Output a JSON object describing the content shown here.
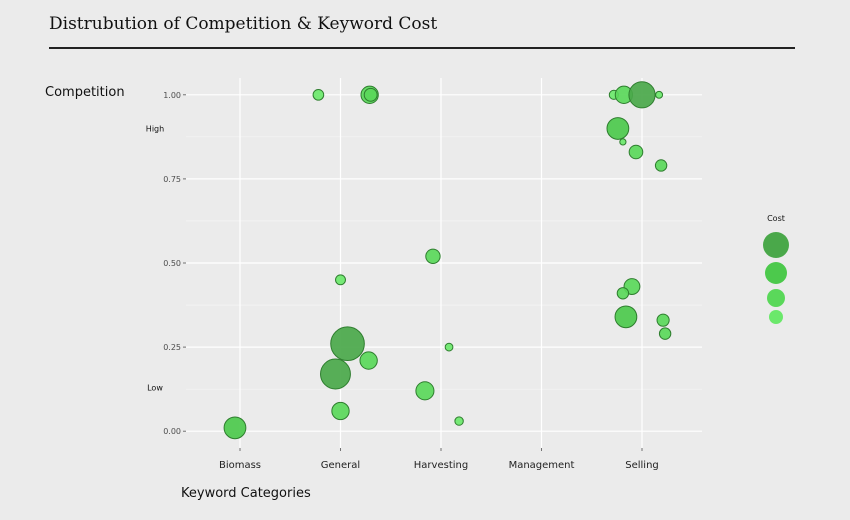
{
  "chart_data": {
    "type": "scatter",
    "title": "Distrubution of Competition & Keyword Cost",
    "xlabel": "Keyword Categories",
    "ylabel": "Competition",
    "categories": [
      "Biomass",
      "General",
      "Harvesting",
      "Management",
      "Selling"
    ],
    "yticks": [
      "0.00",
      "0.25",
      "0.50",
      "0.75",
      "1.00"
    ],
    "ylim": [
      -0.05,
      1.05
    ],
    "y_annotations": [
      {
        "label": "High",
        "y": 0.9
      },
      {
        "label": "Low",
        "y": 0.13
      }
    ],
    "grid": true,
    "legend": {
      "title": "Cost",
      "placement": "right",
      "levels": [
        4,
        3,
        2,
        1
      ]
    },
    "colors": {
      "panel": "#ebebeb",
      "grid": "#ffffff",
      "point_stroke": "#2e7d2e",
      "cost_scale": [
        "#6be86b",
        "#5ad85a",
        "#4cc94c",
        "#4aa84a"
      ]
    },
    "points": [
      {
        "x": "Biomass",
        "jitter": -0.05,
        "y": 0.01,
        "cost": 2.4
      },
      {
        "x": "General",
        "jitter": -0.22,
        "y": 1.0,
        "cost": 0.9
      },
      {
        "x": "General",
        "jitter": 0.29,
        "y": 1.0,
        "cost": 1.8
      },
      {
        "x": "General",
        "jitter": 0.3,
        "y": 1.0,
        "cost": 1.2
      },
      {
        "x": "General",
        "jitter": 0.0,
        "y": 0.45,
        "cost": 0.8
      },
      {
        "x": "General",
        "jitter": 0.07,
        "y": 0.26,
        "cost": 4.0
      },
      {
        "x": "General",
        "jitter": 0.28,
        "y": 0.21,
        "cost": 1.8
      },
      {
        "x": "General",
        "jitter": -0.05,
        "y": 0.17,
        "cost": 3.5
      },
      {
        "x": "General",
        "jitter": 0.0,
        "y": 0.06,
        "cost": 1.8
      },
      {
        "x": "Harvesting",
        "jitter": -0.08,
        "y": 0.52,
        "cost": 1.4
      },
      {
        "x": "Harvesting",
        "jitter": 0.08,
        "y": 0.25,
        "cost": 0.5
      },
      {
        "x": "Harvesting",
        "jitter": -0.16,
        "y": 0.12,
        "cost": 1.9
      },
      {
        "x": "Harvesting",
        "jitter": 0.18,
        "y": 0.03,
        "cost": 0.6
      },
      {
        "x": "Selling",
        "jitter": -0.28,
        "y": 1.0,
        "cost": 0.7
      },
      {
        "x": "Selling",
        "jitter": -0.18,
        "y": 1.0,
        "cost": 1.8
      },
      {
        "x": "Selling",
        "jitter": 0.0,
        "y": 1.0,
        "cost": 3.0
      },
      {
        "x": "Selling",
        "jitter": 0.17,
        "y": 1.0,
        "cost": 0.4
      },
      {
        "x": "Selling",
        "jitter": -0.24,
        "y": 0.9,
        "cost": 2.4
      },
      {
        "x": "Selling",
        "jitter": -0.19,
        "y": 0.86,
        "cost": 0.3
      },
      {
        "x": "Selling",
        "jitter": -0.06,
        "y": 0.83,
        "cost": 1.3
      },
      {
        "x": "Selling",
        "jitter": 0.19,
        "y": 0.79,
        "cost": 1.0
      },
      {
        "x": "Selling",
        "jitter": -0.1,
        "y": 0.43,
        "cost": 1.6
      },
      {
        "x": "Selling",
        "jitter": -0.19,
        "y": 0.41,
        "cost": 1.0
      },
      {
        "x": "Selling",
        "jitter": -0.16,
        "y": 0.34,
        "cost": 2.4
      },
      {
        "x": "Selling",
        "jitter": 0.21,
        "y": 0.33,
        "cost": 1.1
      },
      {
        "x": "Selling",
        "jitter": 0.23,
        "y": 0.29,
        "cost": 1.0
      }
    ]
  }
}
